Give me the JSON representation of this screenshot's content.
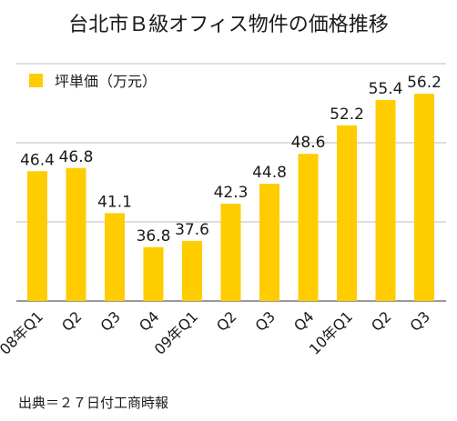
{
  "chart_data": {
    "type": "bar",
    "title": "台北市Ｂ級オフィス物件の価格推移",
    "legend": {
      "label": "坪単価（万元）",
      "position": "top-left"
    },
    "categories": [
      "08年Q1",
      "Q2",
      "Q3",
      "Q4",
      "09年Q1",
      "Q2",
      "Q3",
      "Q4",
      "10年Q1",
      "Q2",
      "Q3"
    ],
    "series": [
      {
        "name": "坪単価（万元）",
        "values": [
          46.4,
          46.8,
          41.1,
          36.8,
          37.6,
          42.3,
          44.8,
          48.6,
          52.2,
          55.4,
          56.2
        ]
      }
    ],
    "value_labels": [
      "46.4",
      "46.8",
      "41.1",
      "36.8",
      "37.6",
      "42.3",
      "44.8",
      "48.6",
      "52.2",
      "55.4",
      "56.2"
    ],
    "ylim": [
      30,
      60
    ],
    "gridlines": [
      30,
      40,
      50,
      60
    ],
    "grid": true,
    "bar_color": "#ffcc00",
    "source": "出典＝２７日付工商時報"
  }
}
